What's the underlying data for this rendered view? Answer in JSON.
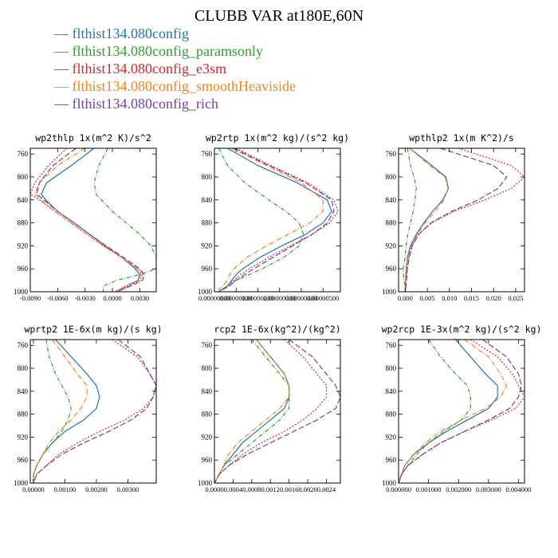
{
  "title": "CLUBB VAR at180E,60N",
  "series": [
    {
      "name": "flthist134.080config",
      "color": "#1f77b4",
      "dash": ""
    },
    {
      "name": "flthist134.080config_paramsonly",
      "color": "#2ca02c",
      "dash": "5,2,1,2"
    },
    {
      "name": "flthist134.080config_e3sm",
      "color": "#d62728",
      "dash": "2,2"
    },
    {
      "name": "flthist134.080config_smoothHeaviside",
      "color": "#ff7f0e",
      "dash": "6,2,1,2"
    },
    {
      "name": "flthist134.080config_rich",
      "color": "#7b3ea0",
      "dash": "7,3"
    }
  ],
  "legend_marker": "—",
  "chart_data": [
    {
      "type": "line",
      "title": "wp2thlp  1x(m^2 K)/s^2",
      "xlim": [
        -0.009,
        0.0048
      ],
      "ylim": [
        1000,
        750
      ],
      "yticks": [
        760,
        800,
        840,
        880,
        920,
        960,
        1000
      ],
      "xticks": [
        "-0.0090",
        "-0.0060",
        "-0.0030",
        "0.0000",
        "0.0030"
      ],
      "xtick_values": [
        -0.009,
        -0.006,
        -0.003,
        0.0,
        0.003
      ],
      "y": [
        750,
        780,
        810,
        830,
        840,
        860,
        880,
        900,
        920,
        940,
        960,
        970,
        980,
        990,
        1000
      ],
      "series": [
        {
          "values": [
            -0.002,
            -0.0045,
            -0.0072,
            -0.0078,
            -0.0073,
            -0.006,
            -0.0042,
            -0.0025,
            -0.0008,
            0.001,
            0.0025,
            0.003,
            0.0028,
            0.0015,
            0.0003
          ]
        },
        {
          "values": [
            -0.0005,
            -0.0015,
            -0.002,
            -0.0018,
            -0.0012,
            0.0,
            0.0015,
            0.003,
            0.0042,
            0.0048,
            0.0048,
            0.003,
            0.0005,
            -0.001,
            -0.001
          ]
        },
        {
          "values": [
            -0.005,
            -0.007,
            -0.0085,
            -0.009,
            -0.008,
            -0.0063,
            -0.0045,
            -0.0028,
            -0.001,
            0.001,
            0.0028,
            0.0033,
            0.003,
            0.0018,
            0.0005
          ]
        },
        {
          "values": [
            -0.003,
            -0.006,
            -0.008,
            -0.0085,
            -0.0078,
            -0.0063,
            -0.0045,
            -0.0028,
            -0.001,
            0.001,
            0.0027,
            0.0031,
            0.0028,
            0.0015,
            0.0003
          ]
        },
        {
          "values": [
            -0.004,
            -0.0065,
            -0.008,
            -0.0083,
            -0.0075,
            -0.006,
            -0.0042,
            -0.0025,
            -0.0007,
            0.0012,
            0.003,
            0.0035,
            0.0033,
            0.002,
            0.0005
          ]
        }
      ]
    },
    {
      "type": "line",
      "title": "wp2rtp  1x(m^2 kg)/(s^2 kg)",
      "xlim": [
        0.0,
        5.8e-06
      ],
      "ylim": [
        1000,
        750
      ],
      "yticks": [
        760,
        800,
        840,
        880,
        920,
        960,
        1000
      ],
      "xticks": [
        "0.00000000",
        "0.00000100",
        "0.00000200",
        "0.00000300",
        "0.00000400",
        "0.00000500"
      ],
      "xtick_values": [
        0.0,
        1e-06,
        2e-06,
        3e-06,
        4e-06,
        5e-06
      ],
      "y": [
        750,
        780,
        810,
        840,
        860,
        880,
        900,
        920,
        940,
        960,
        970,
        980,
        990,
        1000
      ],
      "series": [
        {
          "values": [
            6e-07,
            2e-06,
            3.8e-06,
            5.2e-06,
            5.4e-06,
            5e-06,
            4.2e-06,
            3.1e-06,
            2.1e-06,
            1.3e-06,
            1e-06,
            8e-07,
            6e-07,
            2e-07
          ]
        },
        {
          "values": [
            2e-07,
            6e-07,
            1.4e-06,
            2.5e-06,
            3.3e-06,
            3.9e-06,
            4.1e-06,
            3.9e-06,
            3.2e-06,
            2.2e-06,
            1.6e-06,
            1e-06,
            6e-07,
            2e-07
          ]
        },
        {
          "values": [
            1e-06,
            2.6e-06,
            4.3e-06,
            5.5e-06,
            5.7e-06,
            5.3e-06,
            4.5e-06,
            3.5e-06,
            2.5e-06,
            1.6e-06,
            1.2e-06,
            9e-07,
            6e-07,
            2e-07
          ]
        },
        {
          "values": [
            8e-07,
            2.4e-06,
            4e-06,
            5e-06,
            5e-06,
            4.4e-06,
            3.4e-06,
            2.4e-06,
            1.5e-06,
            9e-07,
            7e-07,
            6e-07,
            4e-07,
            1e-07
          ]
        },
        {
          "values": [
            9e-07,
            2.5e-06,
            4.2e-06,
            5.4e-06,
            5.5e-06,
            5.2e-06,
            4.5e-06,
            3.6e-06,
            2.7e-06,
            1.8e-06,
            1.4e-06,
            1e-06,
            7e-07,
            2e-07
          ]
        }
      ]
    },
    {
      "type": "line",
      "title": "wpthlp2  1x(m K^2)/s",
      "xlim": [
        -0.0015,
        0.027
      ],
      "ylim": [
        1000,
        750
      ],
      "yticks": [
        760,
        800,
        840,
        880,
        920,
        960,
        1000
      ],
      "xticks": [
        "0.000",
        "0.005",
        "0.010",
        "0.015",
        "0.020",
        "0.025"
      ],
      "xtick_values": [
        0.0,
        0.005,
        0.01,
        0.015,
        0.02,
        0.025
      ],
      "y": [
        750,
        780,
        800,
        820,
        840,
        860,
        880,
        900,
        920,
        940,
        960,
        980,
        990,
        1000
      ],
      "series": [
        {
          "values": [
            0.001,
            0.006,
            0.0092,
            0.0098,
            0.0085,
            0.0062,
            0.0042,
            0.0025,
            0.0012,
            0.0005,
            0.0002,
            0.0001,
            0.0001,
            0.0
          ]
        },
        {
          "values": [
            0.0005,
            0.0012,
            0.002,
            0.0025,
            0.0022,
            0.0018,
            0.0012,
            0.0006,
            0.0002,
            0.0,
            -0.0005,
            -0.0003,
            0.0,
            0.0
          ]
        },
        {
          "values": [
            0.012,
            0.024,
            0.027,
            0.024,
            0.018,
            0.011,
            0.006,
            0.003,
            0.0015,
            0.0008,
            0.0004,
            0.0002,
            0.0001,
            0.0
          ]
        },
        {
          "values": [
            0.001,
            0.0055,
            0.009,
            0.0097,
            0.0088,
            0.0068,
            0.0045,
            0.0027,
            0.0014,
            0.0006,
            0.0002,
            0.0001,
            0.0001,
            0.0
          ]
        },
        {
          "values": [
            0.008,
            0.02,
            0.023,
            0.021,
            0.0165,
            0.0105,
            0.0058,
            0.003,
            0.0016,
            0.0009,
            0.0005,
            0.0003,
            0.0002,
            0.0
          ]
        }
      ]
    },
    {
      "type": "line",
      "title": "wprtp2  1E-6x(m kg)/(s kg)",
      "xlim": [
        -0.0001,
        0.0039
      ],
      "ylim": [
        1000,
        750
      ],
      "yticks": [
        760,
        800,
        840,
        880,
        920,
        960,
        1000
      ],
      "xticks": [
        "0.00000",
        "0.00100",
        "0.00200",
        "0.00300"
      ],
      "xtick_values": [
        0.0,
        0.001,
        0.002,
        0.003
      ],
      "y": [
        750,
        780,
        810,
        830,
        850,
        870,
        890,
        910,
        930,
        950,
        970,
        985,
        1000
      ],
      "series": [
        {
          "values": [
            0.0007,
            0.0012,
            0.0017,
            0.002,
            0.0021,
            0.002,
            0.0016,
            0.001,
            0.0006,
            0.0003,
            0.0001,
            0.0,
            0.0
          ]
        },
        {
          "values": [
            0.0004,
            0.0005,
            0.0007,
            0.0009,
            0.0011,
            0.0012,
            0.0011,
            0.0009,
            0.0006,
            0.0003,
            0.0001,
            0.0,
            0.0
          ]
        },
        {
          "values": [
            0.0025,
            0.0033,
            0.0037,
            0.0039,
            0.0038,
            0.0035,
            0.0029,
            0.0021,
            0.0014,
            0.0008,
            0.0004,
            0.0001,
            0.0
          ]
        },
        {
          "values": [
            0.0006,
            0.001,
            0.0014,
            0.0017,
            0.0017,
            0.0015,
            0.0012,
            0.0008,
            0.0005,
            0.0003,
            0.0001,
            0.0,
            0.0
          ]
        },
        {
          "values": [
            0.0027,
            0.0034,
            0.0037,
            0.0039,
            0.0038,
            0.0036,
            0.0031,
            0.0024,
            0.0016,
            0.0009,
            0.0004,
            0.0001,
            0.0
          ]
        }
      ]
    },
    {
      "type": "line",
      "title": "rcp2  1E-6x(kg^2)/(kg^2)",
      "xlim": [
        0.0,
        0.0027
      ],
      "ylim": [
        1000,
        750
      ],
      "yticks": [
        760,
        800,
        840,
        880,
        920,
        960,
        1000
      ],
      "xticks": [
        "0.0000",
        "0.0004",
        "0.0008",
        "0.0012",
        "0.0016",
        "0.0020",
        "0.0024"
      ],
      "xtick_values": [
        0.0,
        0.0004,
        0.0008,
        0.0012,
        0.0016,
        0.002,
        0.0024
      ],
      "y": [
        750,
        780,
        810,
        830,
        850,
        870,
        890,
        910,
        930,
        950,
        970,
        985,
        1000
      ],
      "series": [
        {
          "values": [
            0.0009,
            0.0012,
            0.0015,
            0.0016,
            0.0016,
            0.0015,
            0.0012,
            0.0009,
            0.0006,
            0.0004,
            0.0002,
            0.0001,
            0.0
          ]
        },
        {
          "values": [
            0.0008,
            0.0011,
            0.0014,
            0.0016,
            0.0016,
            0.0016,
            0.0014,
            0.0011,
            0.0008,
            0.0005,
            0.0002,
            0.0001,
            0.0
          ]
        },
        {
          "values": [
            0.0015,
            0.0019,
            0.0022,
            0.0024,
            0.0024,
            0.0022,
            0.0019,
            0.0015,
            0.001,
            0.0006,
            0.0003,
            0.0001,
            0.0
          ]
        },
        {
          "values": [
            0.0009,
            0.0012,
            0.0015,
            0.0016,
            0.0016,
            0.0014,
            0.0011,
            0.0008,
            0.0005,
            0.0003,
            0.0002,
            0.0001,
            0.0
          ]
        },
        {
          "values": [
            0.0016,
            0.0021,
            0.0024,
            0.0026,
            0.0027,
            0.0026,
            0.0022,
            0.0017,
            0.0012,
            0.0007,
            0.0003,
            0.0001,
            0.0
          ]
        }
      ]
    },
    {
      "type": "line",
      "title": "wp2rcp  1E-3x(m^2 kg)/(s^2 kg)",
      "xlim": [
        0.0,
        0.0042
      ],
      "ylim": [
        1000,
        750
      ],
      "yticks": [
        760,
        800,
        840,
        880,
        920,
        960,
        1000
      ],
      "xticks": [
        "0.000000",
        "0.001000",
        "0.002000",
        "0.003000",
        "0.004000"
      ],
      "xtick_values": [
        0.0,
        0.001,
        0.002,
        0.003,
        0.004
      ],
      "y": [
        750,
        780,
        810,
        830,
        850,
        870,
        890,
        910,
        930,
        950,
        970,
        985,
        1000
      ],
      "series": [
        {
          "values": [
            0.0019,
            0.0024,
            0.0029,
            0.0033,
            0.0033,
            0.003,
            0.0023,
            0.0016,
            0.001,
            0.0005,
            0.0002,
            0.0001,
            0.0
          ]
        },
        {
          "values": [
            0.001,
            0.0014,
            0.0019,
            0.0023,
            0.0024,
            0.0024,
            0.0021,
            0.0015,
            0.001,
            0.0006,
            0.0003,
            0.0001,
            0.0
          ]
        },
        {
          "values": [
            0.0024,
            0.0033,
            0.0038,
            0.004,
            0.0042,
            0.0039,
            0.0031,
            0.0022,
            0.0014,
            0.0008,
            0.0003,
            0.0001,
            0.0
          ]
        },
        {
          "values": [
            0.0022,
            0.003,
            0.0034,
            0.0036,
            0.0034,
            0.0029,
            0.0021,
            0.0014,
            0.0009,
            0.0005,
            0.0002,
            0.0001,
            0.0
          ]
        },
        {
          "values": [
            0.0028,
            0.0036,
            0.004,
            0.0041,
            0.004,
            0.0037,
            0.003,
            0.0022,
            0.0014,
            0.0008,
            0.0003,
            0.0001,
            0.0
          ]
        }
      ]
    }
  ]
}
